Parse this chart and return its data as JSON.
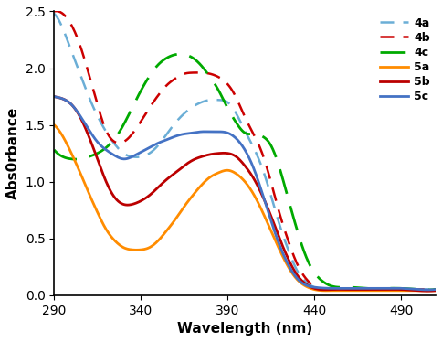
{
  "title": "",
  "xlabel": "Wavelength (nm)",
  "ylabel": "Abs0rbance",
  "xlim": [
    290,
    510
  ],
  "ylim": [
    0,
    2.5
  ],
  "xticks": [
    290,
    340,
    390,
    440,
    490
  ],
  "yticks": [
    0,
    0.5,
    1.0,
    1.5,
    2.0,
    2.5
  ],
  "series": {
    "4a": {
      "color": "#6baed6",
      "linestyle": "dashed",
      "dash_pattern": [
        6,
        4
      ],
      "linewidth": 1.8,
      "points": [
        [
          290,
          2.48
        ],
        [
          295,
          2.35
        ],
        [
          300,
          2.15
        ],
        [
          305,
          1.95
        ],
        [
          310,
          1.75
        ],
        [
          315,
          1.58
        ],
        [
          320,
          1.44
        ],
        [
          325,
          1.33
        ],
        [
          330,
          1.25
        ],
        [
          335,
          1.22
        ],
        [
          340,
          1.22
        ],
        [
          345,
          1.25
        ],
        [
          350,
          1.32
        ],
        [
          355,
          1.42
        ],
        [
          360,
          1.52
        ],
        [
          365,
          1.6
        ],
        [
          370,
          1.66
        ],
        [
          375,
          1.7
        ],
        [
          380,
          1.72
        ],
        [
          385,
          1.72
        ],
        [
          390,
          1.7
        ],
        [
          395,
          1.6
        ],
        [
          400,
          1.45
        ],
        [
          405,
          1.3
        ],
        [
          410,
          1.12
        ],
        [
          415,
          0.88
        ],
        [
          420,
          0.62
        ],
        [
          425,
          0.4
        ],
        [
          430,
          0.22
        ],
        [
          435,
          0.12
        ],
        [
          440,
          0.07
        ],
        [
          450,
          0.05
        ],
        [
          460,
          0.05
        ],
        [
          470,
          0.05
        ],
        [
          480,
          0.05
        ],
        [
          490,
          0.05
        ],
        [
          500,
          0.05
        ],
        [
          510,
          0.05
        ]
      ]
    },
    "4b": {
      "color": "#cc0000",
      "linestyle": "dashed",
      "dash_pattern": [
        6,
        4
      ],
      "linewidth": 1.8,
      "points": [
        [
          290,
          2.5
        ],
        [
          295,
          2.48
        ],
        [
          300,
          2.38
        ],
        [
          305,
          2.2
        ],
        [
          310,
          1.95
        ],
        [
          315,
          1.68
        ],
        [
          320,
          1.45
        ],
        [
          325,
          1.35
        ],
        [
          330,
          1.35
        ],
        [
          335,
          1.42
        ],
        [
          340,
          1.53
        ],
        [
          345,
          1.65
        ],
        [
          350,
          1.76
        ],
        [
          355,
          1.85
        ],
        [
          360,
          1.91
        ],
        [
          365,
          1.95
        ],
        [
          370,
          1.96
        ],
        [
          375,
          1.96
        ],
        [
          380,
          1.95
        ],
        [
          385,
          1.92
        ],
        [
          390,
          1.86
        ],
        [
          395,
          1.74
        ],
        [
          400,
          1.57
        ],
        [
          405,
          1.42
        ],
        [
          410,
          1.25
        ],
        [
          415,
          1.0
        ],
        [
          420,
          0.72
        ],
        [
          425,
          0.48
        ],
        [
          430,
          0.28
        ],
        [
          435,
          0.15
        ],
        [
          440,
          0.08
        ],
        [
          450,
          0.05
        ],
        [
          460,
          0.05
        ],
        [
          470,
          0.05
        ],
        [
          480,
          0.05
        ],
        [
          490,
          0.05
        ],
        [
          500,
          0.05
        ],
        [
          510,
          0.05
        ]
      ]
    },
    "4c": {
      "color": "#00aa00",
      "linestyle": "dashed",
      "dash_pattern": [
        10,
        5
      ],
      "linewidth": 2.0,
      "points": [
        [
          290,
          1.28
        ],
        [
          295,
          1.22
        ],
        [
          300,
          1.2
        ],
        [
          305,
          1.2
        ],
        [
          310,
          1.22
        ],
        [
          315,
          1.25
        ],
        [
          320,
          1.3
        ],
        [
          325,
          1.38
        ],
        [
          330,
          1.5
        ],
        [
          335,
          1.65
        ],
        [
          340,
          1.8
        ],
        [
          345,
          1.93
        ],
        [
          350,
          2.03
        ],
        [
          355,
          2.09
        ],
        [
          360,
          2.12
        ],
        [
          365,
          2.12
        ],
        [
          370,
          2.09
        ],
        [
          375,
          2.02
        ],
        [
          380,
          1.92
        ],
        [
          385,
          1.8
        ],
        [
          390,
          1.65
        ],
        [
          395,
          1.52
        ],
        [
          400,
          1.43
        ],
        [
          405,
          1.42
        ],
        [
          410,
          1.4
        ],
        [
          415,
          1.32
        ],
        [
          420,
          1.12
        ],
        [
          425,
          0.85
        ],
        [
          430,
          0.58
        ],
        [
          435,
          0.35
        ],
        [
          440,
          0.2
        ],
        [
          445,
          0.12
        ],
        [
          450,
          0.08
        ],
        [
          460,
          0.07
        ],
        [
          470,
          0.06
        ],
        [
          480,
          0.06
        ],
        [
          490,
          0.06
        ],
        [
          500,
          0.05
        ],
        [
          510,
          0.05
        ]
      ]
    },
    "5a": {
      "color": "#ff8c00",
      "linestyle": "solid",
      "dash_pattern": [],
      "linewidth": 2.0,
      "points": [
        [
          290,
          1.5
        ],
        [
          295,
          1.4
        ],
        [
          300,
          1.25
        ],
        [
          305,
          1.08
        ],
        [
          310,
          0.9
        ],
        [
          315,
          0.73
        ],
        [
          320,
          0.58
        ],
        [
          325,
          0.48
        ],
        [
          330,
          0.42
        ],
        [
          335,
          0.4
        ],
        [
          340,
          0.4
        ],
        [
          345,
          0.42
        ],
        [
          350,
          0.48
        ],
        [
          355,
          0.57
        ],
        [
          360,
          0.67
        ],
        [
          365,
          0.78
        ],
        [
          370,
          0.88
        ],
        [
          375,
          0.97
        ],
        [
          380,
          1.04
        ],
        [
          385,
          1.08
        ],
        [
          390,
          1.1
        ],
        [
          395,
          1.07
        ],
        [
          400,
          1.0
        ],
        [
          405,
          0.89
        ],
        [
          410,
          0.74
        ],
        [
          415,
          0.57
        ],
        [
          420,
          0.4
        ],
        [
          425,
          0.25
        ],
        [
          430,
          0.14
        ],
        [
          435,
          0.08
        ],
        [
          440,
          0.05
        ],
        [
          450,
          0.04
        ],
        [
          460,
          0.04
        ],
        [
          470,
          0.04
        ],
        [
          480,
          0.04
        ],
        [
          490,
          0.04
        ],
        [
          500,
          0.04
        ],
        [
          510,
          0.04
        ]
      ]
    },
    "5b": {
      "color": "#bb0000",
      "linestyle": "solid",
      "dash_pattern": [],
      "linewidth": 2.0,
      "points": [
        [
          290,
          1.75
        ],
        [
          295,
          1.73
        ],
        [
          300,
          1.68
        ],
        [
          305,
          1.57
        ],
        [
          310,
          1.4
        ],
        [
          315,
          1.2
        ],
        [
          320,
          1.0
        ],
        [
          325,
          0.86
        ],
        [
          330,
          0.8
        ],
        [
          335,
          0.8
        ],
        [
          340,
          0.83
        ],
        [
          345,
          0.88
        ],
        [
          350,
          0.95
        ],
        [
          355,
          1.02
        ],
        [
          360,
          1.08
        ],
        [
          365,
          1.14
        ],
        [
          370,
          1.19
        ],
        [
          375,
          1.22
        ],
        [
          380,
          1.24
        ],
        [
          385,
          1.25
        ],
        [
          390,
          1.25
        ],
        [
          395,
          1.22
        ],
        [
          400,
          1.14
        ],
        [
          405,
          1.03
        ],
        [
          410,
          0.88
        ],
        [
          415,
          0.7
        ],
        [
          420,
          0.5
        ],
        [
          425,
          0.32
        ],
        [
          430,
          0.18
        ],
        [
          435,
          0.1
        ],
        [
          440,
          0.06
        ],
        [
          450,
          0.05
        ],
        [
          460,
          0.05
        ],
        [
          470,
          0.05
        ],
        [
          480,
          0.05
        ],
        [
          490,
          0.05
        ],
        [
          500,
          0.04
        ],
        [
          510,
          0.04
        ]
      ]
    },
    "5c": {
      "color": "#4472c4",
      "linestyle": "solid",
      "dash_pattern": [],
      "linewidth": 2.0,
      "points": [
        [
          290,
          1.75
        ],
        [
          295,
          1.73
        ],
        [
          300,
          1.68
        ],
        [
          305,
          1.58
        ],
        [
          310,
          1.46
        ],
        [
          315,
          1.35
        ],
        [
          320,
          1.28
        ],
        [
          325,
          1.23
        ],
        [
          330,
          1.2
        ],
        [
          335,
          1.22
        ],
        [
          340,
          1.26
        ],
        [
          345,
          1.3
        ],
        [
          350,
          1.34
        ],
        [
          355,
          1.37
        ],
        [
          360,
          1.4
        ],
        [
          365,
          1.42
        ],
        [
          370,
          1.43
        ],
        [
          375,
          1.44
        ],
        [
          380,
          1.44
        ],
        [
          385,
          1.44
        ],
        [
          390,
          1.43
        ],
        [
          395,
          1.38
        ],
        [
          400,
          1.28
        ],
        [
          405,
          1.12
        ],
        [
          410,
          0.9
        ],
        [
          415,
          0.66
        ],
        [
          420,
          0.44
        ],
        [
          425,
          0.27
        ],
        [
          430,
          0.15
        ],
        [
          435,
          0.09
        ],
        [
          440,
          0.07
        ],
        [
          450,
          0.06
        ],
        [
          460,
          0.06
        ],
        [
          470,
          0.06
        ],
        [
          480,
          0.06
        ],
        [
          490,
          0.06
        ],
        [
          500,
          0.05
        ],
        [
          510,
          0.05
        ]
      ]
    }
  },
  "legend_order": [
    "4a",
    "4b",
    "4c",
    "5a",
    "5b",
    "5c"
  ],
  "legend_loc": "upper right",
  "background_color": "#ffffff"
}
